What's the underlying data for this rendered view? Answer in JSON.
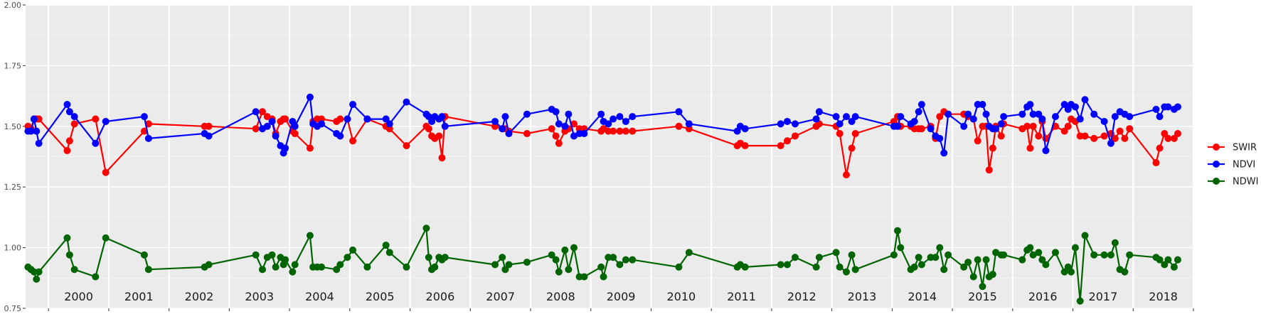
{
  "chart_data": {
    "type": "line",
    "title": "",
    "xlabel": "",
    "ylabel": "",
    "ylim": [
      0.75,
      2.0
    ],
    "xlim": [
      1999.62,
      2019.0
    ],
    "y_ticks": [
      "0.75",
      "1.00",
      "1.25",
      "1.50",
      "1.75",
      "2.00"
    ],
    "y_tick_values": [
      0.75,
      1.0,
      1.25,
      1.5,
      1.75,
      2.0
    ],
    "year_labels": [
      "2000",
      "2001",
      "2002",
      "2003",
      "2004",
      "2005",
      "2006",
      "2007",
      "2008",
      "2009",
      "2010",
      "2011",
      "2012",
      "2013",
      "2014",
      "2015",
      "2016",
      "2017",
      "2018"
    ],
    "year_boundaries": [
      2000,
      2001,
      2002,
      2003,
      2004,
      2005,
      2006,
      2007,
      2008,
      2009,
      2010,
      2011,
      2012,
      2013,
      2014,
      2015,
      2016,
      2017,
      2018,
      2019
    ],
    "grid": true,
    "legend_position": "right",
    "panel_background": "#ebebeb",
    "series": [
      {
        "name": "SWIR",
        "color": "#ff0000",
        "x": [
          1999.66,
          1999.71,
          1999.76,
          1999.8,
          1999.84,
          2000.31,
          2000.35,
          2000.43,
          2000.78,
          2000.95,
          2001.59,
          2001.66,
          2002.59,
          2002.66,
          2003.44,
          2003.55,
          2003.63,
          2003.71,
          2003.77,
          2003.85,
          2003.9,
          2003.93,
          2004.05,
          2004.09,
          2004.34,
          2004.39,
          2004.46,
          2004.53,
          2004.78,
          2004.84,
          2004.96,
          2005.05,
          2005.29,
          2005.6,
          2005.66,
          2005.94,
          2006.27,
          2006.31,
          2006.36,
          2006.41,
          2006.48,
          2006.53,
          2006.58,
          2007.41,
          2007.53,
          2007.58,
          2007.64,
          2007.94,
          2008.35,
          2008.42,
          2008.47,
          2008.57,
          2008.63,
          2008.72,
          2008.81,
          2008.89,
          2009.17,
          2009.21,
          2009.29,
          2009.37,
          2009.48,
          2009.58,
          2009.69,
          2010.46,
          2010.63,
          2011.43,
          2011.48,
          2011.56,
          2012.15,
          2012.26,
          2012.39,
          2012.74,
          2012.79,
          2013.07,
          2013.13,
          2013.24,
          2013.33,
          2013.39,
          2014.03,
          2014.09,
          2014.14,
          2014.31,
          2014.37,
          2014.44,
          2014.49,
          2014.64,
          2014.72,
          2014.79,
          2014.86,
          2014.93,
          2015.19,
          2015.26,
          2015.35,
          2015.42,
          2015.5,
          2015.56,
          2015.61,
          2015.67,
          2015.72,
          2015.81,
          2015.85,
          2016.16,
          2016.24,
          2016.29,
          2016.34,
          2016.43,
          2016.49,
          2016.55,
          2016.71,
          2016.86,
          2016.92,
          2016.97,
          2017.04,
          2017.12,
          2017.2,
          2017.35,
          2017.52,
          2017.63,
          2017.7,
          2017.78,
          2017.86,
          2017.94,
          2018.38,
          2018.44,
          2018.52,
          2018.58,
          2018.68,
          2018.74
        ],
        "values": [
          1.5,
          1.49,
          1.53,
          1.53,
          1.53,
          1.4,
          1.44,
          1.51,
          1.53,
          1.31,
          1.48,
          1.51,
          1.5,
          1.5,
          1.49,
          1.56,
          1.54,
          1.53,
          1.47,
          1.52,
          1.53,
          1.53,
          1.48,
          1.47,
          1.41,
          1.52,
          1.53,
          1.53,
          1.52,
          1.53,
          1.53,
          1.44,
          1.53,
          1.5,
          1.49,
          1.42,
          1.5,
          1.49,
          1.46,
          1.45,
          1.46,
          1.37,
          1.54,
          1.5,
          1.49,
          1.49,
          1.48,
          1.47,
          1.49,
          1.46,
          1.43,
          1.48,
          1.49,
          1.51,
          1.49,
          1.49,
          1.48,
          1.49,
          1.48,
          1.48,
          1.48,
          1.48,
          1.48,
          1.5,
          1.49,
          1.42,
          1.43,
          1.42,
          1.42,
          1.44,
          1.46,
          1.5,
          1.51,
          1.5,
          1.47,
          1.3,
          1.41,
          1.47,
          1.52,
          1.54,
          1.5,
          1.5,
          1.49,
          1.49,
          1.49,
          1.5,
          1.45,
          1.54,
          1.56,
          1.55,
          1.55,
          1.54,
          1.53,
          1.44,
          1.5,
          1.5,
          1.32,
          1.41,
          1.5,
          1.46,
          1.51,
          1.49,
          1.5,
          1.41,
          1.5,
          1.46,
          1.52,
          1.45,
          1.5,
          1.48,
          1.5,
          1.53,
          1.52,
          1.46,
          1.46,
          1.45,
          1.46,
          1.47,
          1.45,
          1.48,
          1.45,
          1.49,
          1.35,
          1.41,
          1.47,
          1.45,
          1.45,
          1.47
        ]
      },
      {
        "name": "NDVI",
        "color": "#0000ff",
        "x": [
          1999.66,
          1999.71,
          1999.76,
          1999.8,
          1999.84,
          2000.31,
          2000.35,
          2000.43,
          2000.78,
          2000.95,
          2001.59,
          2001.66,
          2002.59,
          2002.66,
          2003.44,
          2003.55,
          2003.63,
          2003.71,
          2003.77,
          2003.85,
          2003.9,
          2003.93,
          2004.05,
          2004.09,
          2004.34,
          2004.39,
          2004.46,
          2004.53,
          2004.78,
          2004.84,
          2004.96,
          2005.05,
          2005.29,
          2005.6,
          2005.66,
          2005.94,
          2006.27,
          2006.31,
          2006.36,
          2006.41,
          2006.48,
          2006.53,
          2006.58,
          2007.41,
          2007.53,
          2007.58,
          2007.64,
          2007.94,
          2008.35,
          2008.42,
          2008.47,
          2008.57,
          2008.63,
          2008.72,
          2008.81,
          2008.89,
          2009.17,
          2009.21,
          2009.29,
          2009.37,
          2009.48,
          2009.58,
          2009.69,
          2010.46,
          2010.63,
          2011.43,
          2011.48,
          2011.56,
          2012.15,
          2012.26,
          2012.39,
          2012.74,
          2012.79,
          2013.07,
          2013.13,
          2013.24,
          2013.33,
          2013.39,
          2014.03,
          2014.09,
          2014.14,
          2014.31,
          2014.37,
          2014.44,
          2014.49,
          2014.64,
          2014.72,
          2014.79,
          2014.86,
          2014.93,
          2015.19,
          2015.26,
          2015.35,
          2015.42,
          2015.5,
          2015.56,
          2015.61,
          2015.67,
          2015.72,
          2015.81,
          2015.85,
          2016.16,
          2016.24,
          2016.29,
          2016.34,
          2016.43,
          2016.49,
          2016.55,
          2016.71,
          2016.86,
          2016.92,
          2016.97,
          2017.04,
          2017.12,
          2017.2,
          2017.35,
          2017.52,
          2017.63,
          2017.7,
          2017.78,
          2017.86,
          2017.94,
          2018.38,
          2018.44,
          2018.52,
          2018.58,
          2018.68,
          2018.74
        ],
        "values": [
          1.48,
          1.48,
          1.53,
          1.48,
          1.43,
          1.59,
          1.56,
          1.54,
          1.43,
          1.52,
          1.54,
          1.45,
          1.47,
          1.46,
          1.56,
          1.49,
          1.5,
          1.52,
          1.46,
          1.42,
          1.39,
          1.41,
          1.52,
          1.5,
          1.62,
          1.51,
          1.5,
          1.51,
          1.47,
          1.46,
          1.53,
          1.59,
          1.53,
          1.53,
          1.51,
          1.6,
          1.55,
          1.54,
          1.52,
          1.54,
          1.53,
          1.54,
          1.5,
          1.52,
          1.49,
          1.54,
          1.47,
          1.55,
          1.57,
          1.56,
          1.51,
          1.5,
          1.55,
          1.46,
          1.47,
          1.47,
          1.55,
          1.52,
          1.51,
          1.53,
          1.54,
          1.52,
          1.54,
          1.56,
          1.51,
          1.48,
          1.5,
          1.49,
          1.51,
          1.52,
          1.51,
          1.53,
          1.56,
          1.54,
          1.51,
          1.54,
          1.52,
          1.54,
          1.5,
          1.5,
          1.54,
          1.51,
          1.52,
          1.56,
          1.59,
          1.49,
          1.46,
          1.45,
          1.39,
          1.55,
          1.5,
          1.55,
          1.53,
          1.59,
          1.59,
          1.55,
          1.5,
          1.49,
          1.49,
          1.51,
          1.54,
          1.55,
          1.58,
          1.59,
          1.55,
          1.55,
          1.53,
          1.4,
          1.54,
          1.59,
          1.57,
          1.59,
          1.58,
          1.53,
          1.61,
          1.55,
          1.52,
          1.43,
          1.54,
          1.56,
          1.55,
          1.54,
          1.57,
          1.54,
          1.58,
          1.58,
          1.57,
          1.58
        ]
      },
      {
        "name": "NDWI",
        "color": "#006400",
        "x": [
          1999.66,
          1999.71,
          1999.76,
          1999.8,
          1999.84,
          2000.31,
          2000.35,
          2000.43,
          2000.78,
          2000.95,
          2001.59,
          2001.66,
          2002.59,
          2002.66,
          2003.44,
          2003.55,
          2003.63,
          2003.71,
          2003.77,
          2003.85,
          2003.9,
          2003.93,
          2004.05,
          2004.09,
          2004.34,
          2004.39,
          2004.46,
          2004.53,
          2004.78,
          2004.84,
          2004.96,
          2005.05,
          2005.29,
          2005.6,
          2005.66,
          2005.94,
          2006.27,
          2006.31,
          2006.36,
          2006.41,
          2006.48,
          2006.53,
          2006.58,
          2007.41,
          2007.53,
          2007.58,
          2007.64,
          2007.94,
          2008.35,
          2008.42,
          2008.47,
          2008.57,
          2008.63,
          2008.72,
          2008.81,
          2008.89,
          2009.17,
          2009.21,
          2009.29,
          2009.37,
          2009.48,
          2009.58,
          2009.69,
          2010.46,
          2010.63,
          2011.43,
          2011.48,
          2011.56,
          2012.15,
          2012.26,
          2012.39,
          2012.74,
          2012.79,
          2013.07,
          2013.13,
          2013.24,
          2013.33,
          2013.39,
          2014.03,
          2014.09,
          2014.14,
          2014.31,
          2014.37,
          2014.44,
          2014.49,
          2014.64,
          2014.72,
          2014.79,
          2014.86,
          2014.93,
          2015.19,
          2015.26,
          2015.35,
          2015.42,
          2015.5,
          2015.56,
          2015.61,
          2015.67,
          2015.72,
          2015.81,
          2015.85,
          2016.16,
          2016.24,
          2016.29,
          2016.34,
          2016.43,
          2016.49,
          2016.55,
          2016.71,
          2016.86,
          2016.92,
          2016.97,
          2017.04,
          2017.12,
          2017.2,
          2017.35,
          2017.52,
          2017.63,
          2017.7,
          2017.78,
          2017.86,
          2017.94,
          2018.38,
          2018.44,
          2018.52,
          2018.58,
          2018.68,
          2018.74
        ],
        "values": [
          0.92,
          0.91,
          0.9,
          0.87,
          0.9,
          1.04,
          0.97,
          0.91,
          0.88,
          1.04,
          0.97,
          0.91,
          0.92,
          0.93,
          0.97,
          0.91,
          0.96,
          0.97,
          0.92,
          0.96,
          0.93,
          0.95,
          0.9,
          0.93,
          1.05,
          0.92,
          0.92,
          0.92,
          0.91,
          0.93,
          0.96,
          0.99,
          0.92,
          1.01,
          0.98,
          0.92,
          1.08,
          0.96,
          0.91,
          0.92,
          0.96,
          0.95,
          0.96,
          0.93,
          0.96,
          0.91,
          0.93,
          0.94,
          0.97,
          0.95,
          0.9,
          0.99,
          0.91,
          1.0,
          0.88,
          0.88,
          0.92,
          0.88,
          0.96,
          0.96,
          0.93,
          0.95,
          0.95,
          0.92,
          0.98,
          0.92,
          0.93,
          0.92,
          0.93,
          0.93,
          0.96,
          0.92,
          0.96,
          0.98,
          0.92,
          0.9,
          0.97,
          0.91,
          0.97,
          1.07,
          1.0,
          0.91,
          0.92,
          0.96,
          0.93,
          0.96,
          0.96,
          1.0,
          0.91,
          0.97,
          0.92,
          0.94,
          0.88,
          0.95,
          0.84,
          0.95,
          0.88,
          0.89,
          0.98,
          0.97,
          0.97,
          0.95,
          0.99,
          1.0,
          0.97,
          0.98,
          0.95,
          0.93,
          0.98,
          0.9,
          0.92,
          0.9,
          1.0,
          0.78,
          1.05,
          0.97,
          0.97,
          0.97,
          1.02,
          0.91,
          0.9,
          0.97,
          0.96,
          0.95,
          0.93,
          0.95,
          0.92,
          0.95
        ]
      }
    ]
  }
}
